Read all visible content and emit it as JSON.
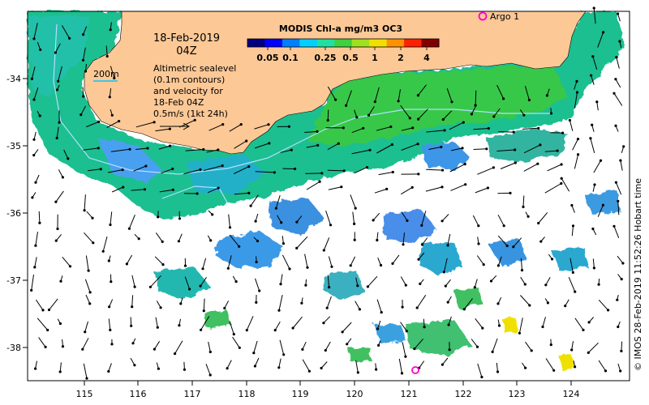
{
  "date_line": "18-Feb-2019",
  "time_line": "04Z",
  "depth_label": "200m",
  "legend_text": [
    "Altimetric sealevel",
    "(0.1m contours)",
    "and velocity for",
    "18-Feb 04Z",
    "0.5m/s (1kt 24h)"
  ],
  "colorbar": {
    "title": "MODIS Chl-a mg/m3 OC3",
    "ticks": [
      "0.05",
      "0.1",
      "0.25",
      "0.5",
      "1",
      "2",
      "4"
    ],
    "colors": [
      "#00007f",
      "#0000ff",
      "#0080ff",
      "#00d0ff",
      "#20e0a0",
      "#40d040",
      "#a0e020",
      "#f0e000",
      "#ff9000",
      "#ff2000",
      "#800000"
    ]
  },
  "argo_label": "Argo 1",
  "credit": "© IMOS 28-Feb-2019 11:52:26 Hobart time",
  "lon_ticks": [
    "115",
    "116",
    "117",
    "118",
    "119",
    "120",
    "121",
    "122",
    "123",
    "124"
  ],
  "lat_ticks": [
    "-34",
    "-35",
    "-36",
    "-37",
    "-38"
  ],
  "colors": {
    "land": "#fcc896",
    "ocean": "#ffffff",
    "argo": "#ff00cc",
    "isobath": "#b0e0ff"
  }
}
